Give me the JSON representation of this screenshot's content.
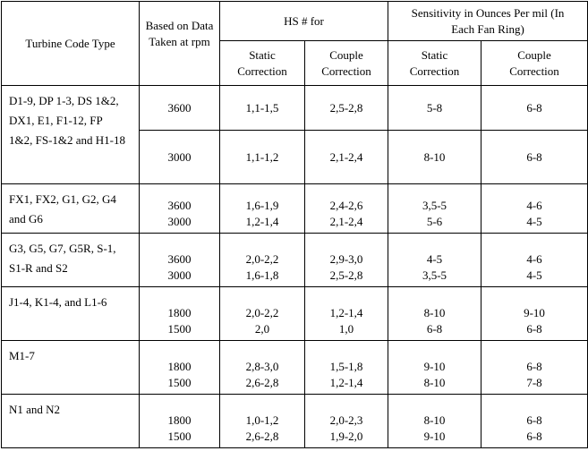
{
  "header": {
    "turbine": "Turbine Code Type",
    "rpm": "Based on Data Taken at rpm",
    "hs": "HS # for",
    "sensitivity": "Sensitivity in Ounces Per mil (In Each Fan Ring)",
    "hs_static": "Static Correction",
    "hs_couple": "Couple Correction",
    "sens_static": "Static Correction",
    "sens_couple": "Couple Correction"
  },
  "groups": [
    {
      "type": "D1-9, DP 1-3, DS 1&2, DX1, E1, F1-12, FP 1&2, FS-1&2 and H1-18",
      "rows": [
        [
          3600,
          "1,1-1,5",
          "2,5-2,8",
          "5-8",
          "6-8"
        ],
        [
          3000,
          "1,1-1,2",
          "2,1-2,4",
          "8-10",
          "6-8"
        ]
      ]
    },
    {
      "type": "FX1, FX2, G1, G2, G4 and G6",
      "rows": [
        [
          3600,
          "1,6-1,9",
          "2,4-2,6",
          "3,5-5",
          "4-6"
        ],
        [
          3000,
          "1,2-1,4",
          "2,1-2,4",
          "5-6",
          "4-5"
        ]
      ]
    },
    {
      "type": "G3, G5, G7, G5R, S-1, S1-R and S2",
      "rows": [
        [
          3600,
          "2,0-2,2",
          "2,9-3,0",
          "4-5",
          "4-6"
        ],
        [
          3000,
          "1,6-1,8",
          "2,5-2,8",
          "3,5-5",
          "4-5"
        ]
      ]
    },
    {
      "type": "J1-4, K1-4, and L1-6",
      "rows": [
        [
          1800,
          "2,0-2,2",
          "1,2-1,4",
          "8-10",
          "9-10"
        ],
        [
          1500,
          "2,0",
          "1,0",
          "6-8",
          "6-8"
        ]
      ]
    },
    {
      "type": "M1-7",
      "rows": [
        [
          1800,
          "2,8-3,0",
          "1,5-1,8",
          "9-10",
          "6-8"
        ],
        [
          1500,
          "2,6-2,8",
          "1,2-1,4",
          "8-10",
          "7-8"
        ]
      ]
    },
    {
      "type": "N1 and N2",
      "rows": [
        [
          1800,
          "1,0-1,2",
          "2,0-2,3",
          "8-10",
          "6-8"
        ],
        [
          1500,
          "2,6-2,8",
          "1,9-2,0",
          "9-10",
          "6-8"
        ]
      ]
    }
  ]
}
